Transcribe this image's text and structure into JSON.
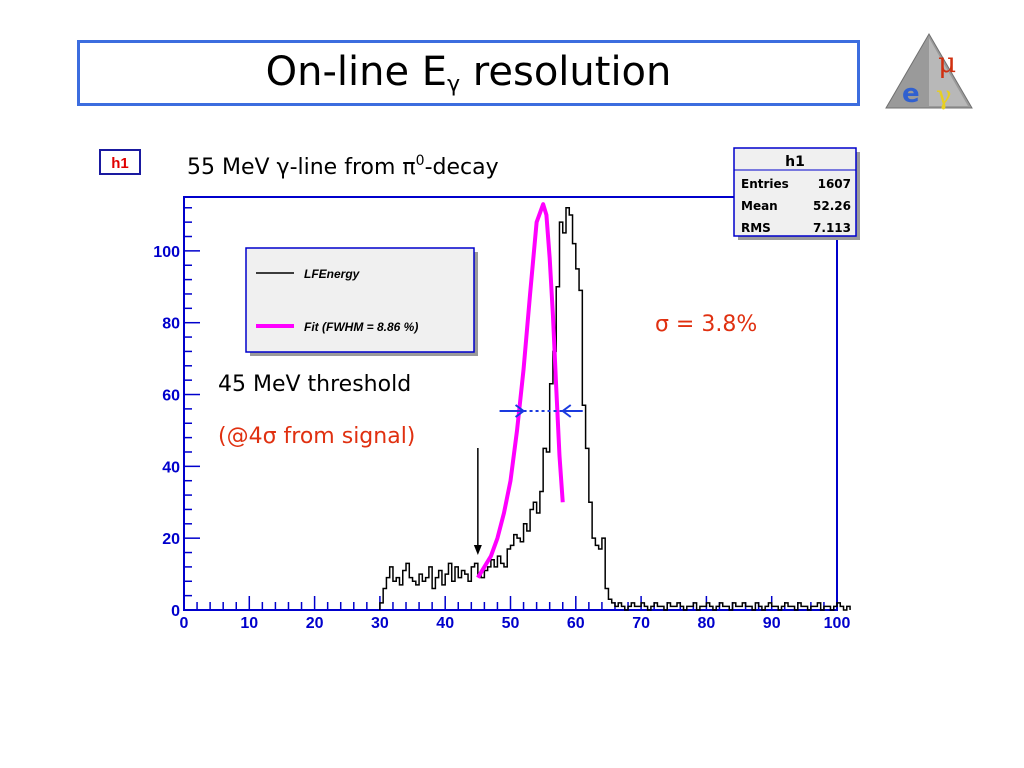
{
  "slide": {
    "title_main": "On-line E",
    "title_sub": "γ",
    "title_rest": " resolution"
  },
  "logo": {
    "icon": "mu-e-gamma-logo",
    "glyph_mu": "μ",
    "glyph_e": "e",
    "glyph_gamma": "γ"
  },
  "histogram_name": "h1",
  "subtitle": {
    "prefix": "55 MeV ",
    "gamma": "γ",
    "mid": "-line from ",
    "pi": "π",
    "sup": "0",
    "suffix": "-decay"
  },
  "stats_box": {
    "title": "h1",
    "rows": [
      {
        "label": "Entries",
        "value": "1607"
      },
      {
        "label": "Mean",
        "value": "52.26"
      },
      {
        "label": "RMS",
        "value": "7.113"
      }
    ]
  },
  "annotations": {
    "sigma_label": "σ = 3.8%",
    "threshold_label": "45 MeV threshold",
    "signal_label_open": "(@4",
    "signal_label_sigma": "σ",
    "signal_label_close": " from signal)"
  },
  "colors": {
    "title_border": "#3c6ddf",
    "frame_blue": "#0000cc",
    "fit": "#ff00ff",
    "annotation_red": "#e03010",
    "histogram": "#000000"
  },
  "chart_data": {
    "type": "bar",
    "xlim": [
      0,
      100
    ],
    "ylim": [
      0,
      115
    ],
    "x_ticks": [
      0,
      10,
      20,
      30,
      40,
      50,
      60,
      70,
      80,
      90,
      100
    ],
    "y_ticks": [
      0,
      20,
      40,
      60,
      80,
      100
    ],
    "bin_width": 0.5,
    "bin_start": 30,
    "series": [
      {
        "name": "LFEnergy",
        "kind": "histogram",
        "values": [
          2,
          6,
          9,
          12,
          8,
          9,
          7,
          11,
          13,
          9,
          8,
          7,
          10,
          8,
          9,
          12,
          6,
          9,
          11,
          7,
          10,
          13,
          8,
          12,
          9,
          11,
          10,
          8,
          12,
          13,
          10,
          9,
          11,
          12,
          14,
          12,
          15,
          13,
          12,
          17,
          18,
          21,
          20,
          19,
          24,
          22,
          28,
          30,
          27,
          33,
          45,
          44,
          63,
          72,
          90,
          108,
          105,
          112,
          110,
          102,
          95,
          89,
          57,
          45,
          30,
          20,
          18,
          17,
          20,
          6,
          3,
          2,
          1,
          2,
          1,
          0,
          1,
          2,
          1,
          1,
          2,
          1,
          0,
          1,
          2,
          1,
          1,
          0,
          2,
          1,
          1,
          2,
          1,
          0,
          1,
          1,
          2,
          0,
          1,
          1,
          2,
          1,
          0,
          1,
          2,
          1,
          1,
          0,
          2,
          1,
          1,
          2,
          1,
          1,
          0,
          2,
          1,
          0,
          1,
          2,
          1,
          1,
          0,
          1,
          2,
          1,
          1,
          0,
          2,
          1,
          1,
          0,
          1,
          1,
          2,
          0,
          1,
          1,
          0,
          1,
          2,
          1,
          0,
          1
        ]
      },
      {
        "name": "Fit (FWHM = 8.86 %)",
        "kind": "fit",
        "x": [
          45.0,
          46.0,
          47.0,
          48.0,
          49.0,
          50.0,
          51.0,
          52.0,
          53.0,
          54.0,
          55.0,
          55.5,
          56.0,
          56.5,
          57.0,
          57.5,
          58.0
        ],
        "y": [
          9,
          12,
          15,
          20,
          27,
          36,
          50,
          67,
          88,
          108,
          113,
          110,
          98,
          82,
          62,
          43,
          30
        ]
      }
    ],
    "legend": [
      {
        "label": "LFEnergy",
        "color": "#000000"
      },
      {
        "label": "Fit (FWHM = 8.86 %)",
        "color": "#ff00ff"
      }
    ],
    "legend_position": "top-left",
    "threshold_x": 45,
    "fwhm_range": [
      52.0,
      58.0
    ]
  }
}
